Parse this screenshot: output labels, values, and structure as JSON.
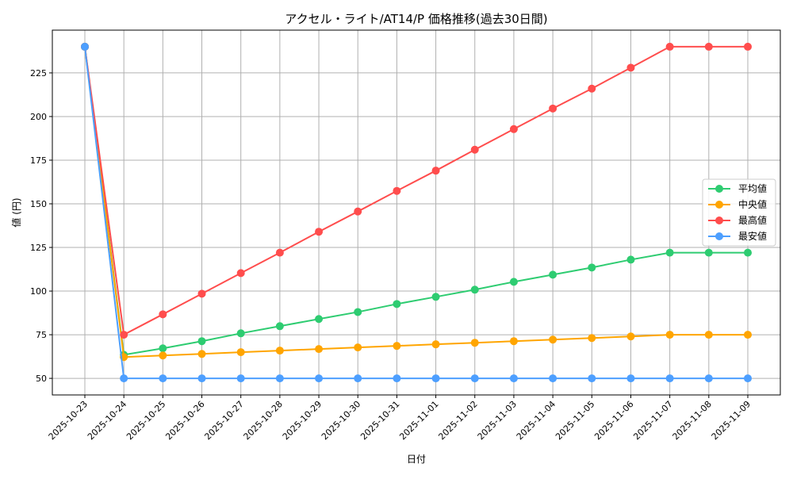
{
  "chart_data": {
    "type": "line",
    "title": "アクセル・ライト/AT14/P 価格推移(過去30日間)",
    "xlabel": "日付",
    "ylabel": "値 (円)",
    "ylim": [
      40.5,
      249.5
    ],
    "yticks": [
      50,
      75,
      100,
      125,
      150,
      175,
      200,
      225
    ],
    "grid": true,
    "legend_placement": "center-right",
    "x": [
      "2025-10-23",
      "2025-10-24",
      "2025-10-25",
      "2025-10-26",
      "2025-10-27",
      "2025-10-28",
      "2025-10-29",
      "2025-10-30",
      "2025-10-31",
      "2025-11-01",
      "2025-11-02",
      "2025-11-03",
      "2025-11-04",
      "2025-11-05",
      "2025-11-06",
      "2025-11-07",
      "2025-11-08",
      "2025-11-09"
    ],
    "series": [
      {
        "name": "平均値",
        "color": "#2ecc71",
        "values": [
          240,
          63.5,
          67.2,
          71.3,
          75.8,
          79.9,
          84,
          88,
          92.6,
          96.7,
          100.8,
          105.3,
          109.4,
          113.5,
          118,
          122,
          122,
          122
        ]
      },
      {
        "name": "中央値",
        "color": "#ffa500",
        "values": [
          240,
          62.2,
          63.1,
          64,
          65,
          65.9,
          66.8,
          67.7,
          68.6,
          69.5,
          70.4,
          71.3,
          72.2,
          73.1,
          74,
          75,
          75,
          75
        ]
      },
      {
        "name": "最高値",
        "color": "#ff4d4d",
        "values": [
          240,
          75,
          86.7,
          98.5,
          110.3,
          122,
          134,
          145.6,
          157.4,
          169,
          181,
          192.8,
          204.6,
          216,
          228,
          240,
          240,
          240
        ]
      },
      {
        "name": "最安値",
        "color": "#4d9fff",
        "values": [
          240,
          50,
          50,
          50,
          50,
          50,
          50,
          50,
          50,
          50,
          50,
          50,
          50,
          50,
          50,
          50,
          50,
          50
        ]
      }
    ]
  }
}
